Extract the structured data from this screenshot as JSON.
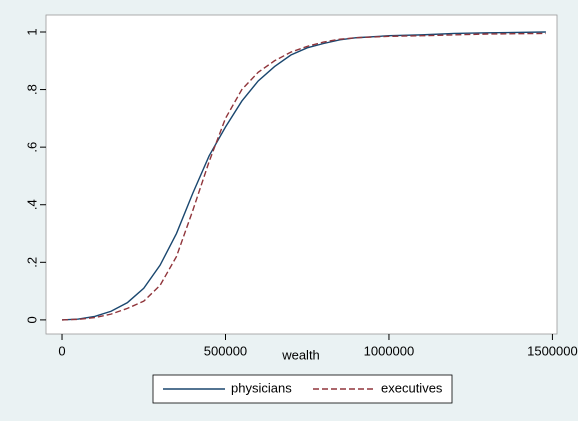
{
  "chart_data": {
    "type": "line",
    "xlabel": "wealth",
    "x": [
      0,
      50000,
      100000,
      150000,
      200000,
      250000,
      300000,
      350000,
      400000,
      450000,
      500000,
      550000,
      600000,
      650000,
      700000,
      750000,
      800000,
      850000,
      900000,
      1000000,
      1100000,
      1200000,
      1300000,
      1480000
    ],
    "series": [
      {
        "name": "physicians",
        "color": "#1a476f",
        "dash": "solid",
        "values": [
          0,
          0.003,
          0.012,
          0.03,
          0.06,
          0.11,
          0.19,
          0.3,
          0.44,
          0.57,
          0.67,
          0.76,
          0.83,
          0.88,
          0.92,
          0.945,
          0.96,
          0.973,
          0.98,
          0.987,
          0.99,
          0.995,
          0.997,
          1
        ]
      },
      {
        "name": "executives",
        "color": "#90353b",
        "dash": "dashed",
        "values": [
          0,
          0.002,
          0.008,
          0.02,
          0.04,
          0.065,
          0.12,
          0.22,
          0.38,
          0.55,
          0.7,
          0.8,
          0.86,
          0.9,
          0.93,
          0.95,
          0.965,
          0.975,
          0.98,
          0.985,
          0.987,
          0.99,
          0.993,
          0.995
        ]
      }
    ],
    "xlim": [
      -49000,
      1514000
    ],
    "xticks": [
      0,
      500000,
      1000000,
      1500000
    ],
    "ylim": [
      -0.049,
      1.059
    ],
    "yticks": [
      0,
      {
        "value": 0.2,
        "label": ".2"
      },
      {
        "value": 0.4,
        "label": ".4"
      },
      {
        "value": 0.6,
        "label": ".6"
      },
      {
        "value": 0.8,
        "label": ".8"
      },
      1
    ],
    "grid": false,
    "legend": "bottom"
  }
}
